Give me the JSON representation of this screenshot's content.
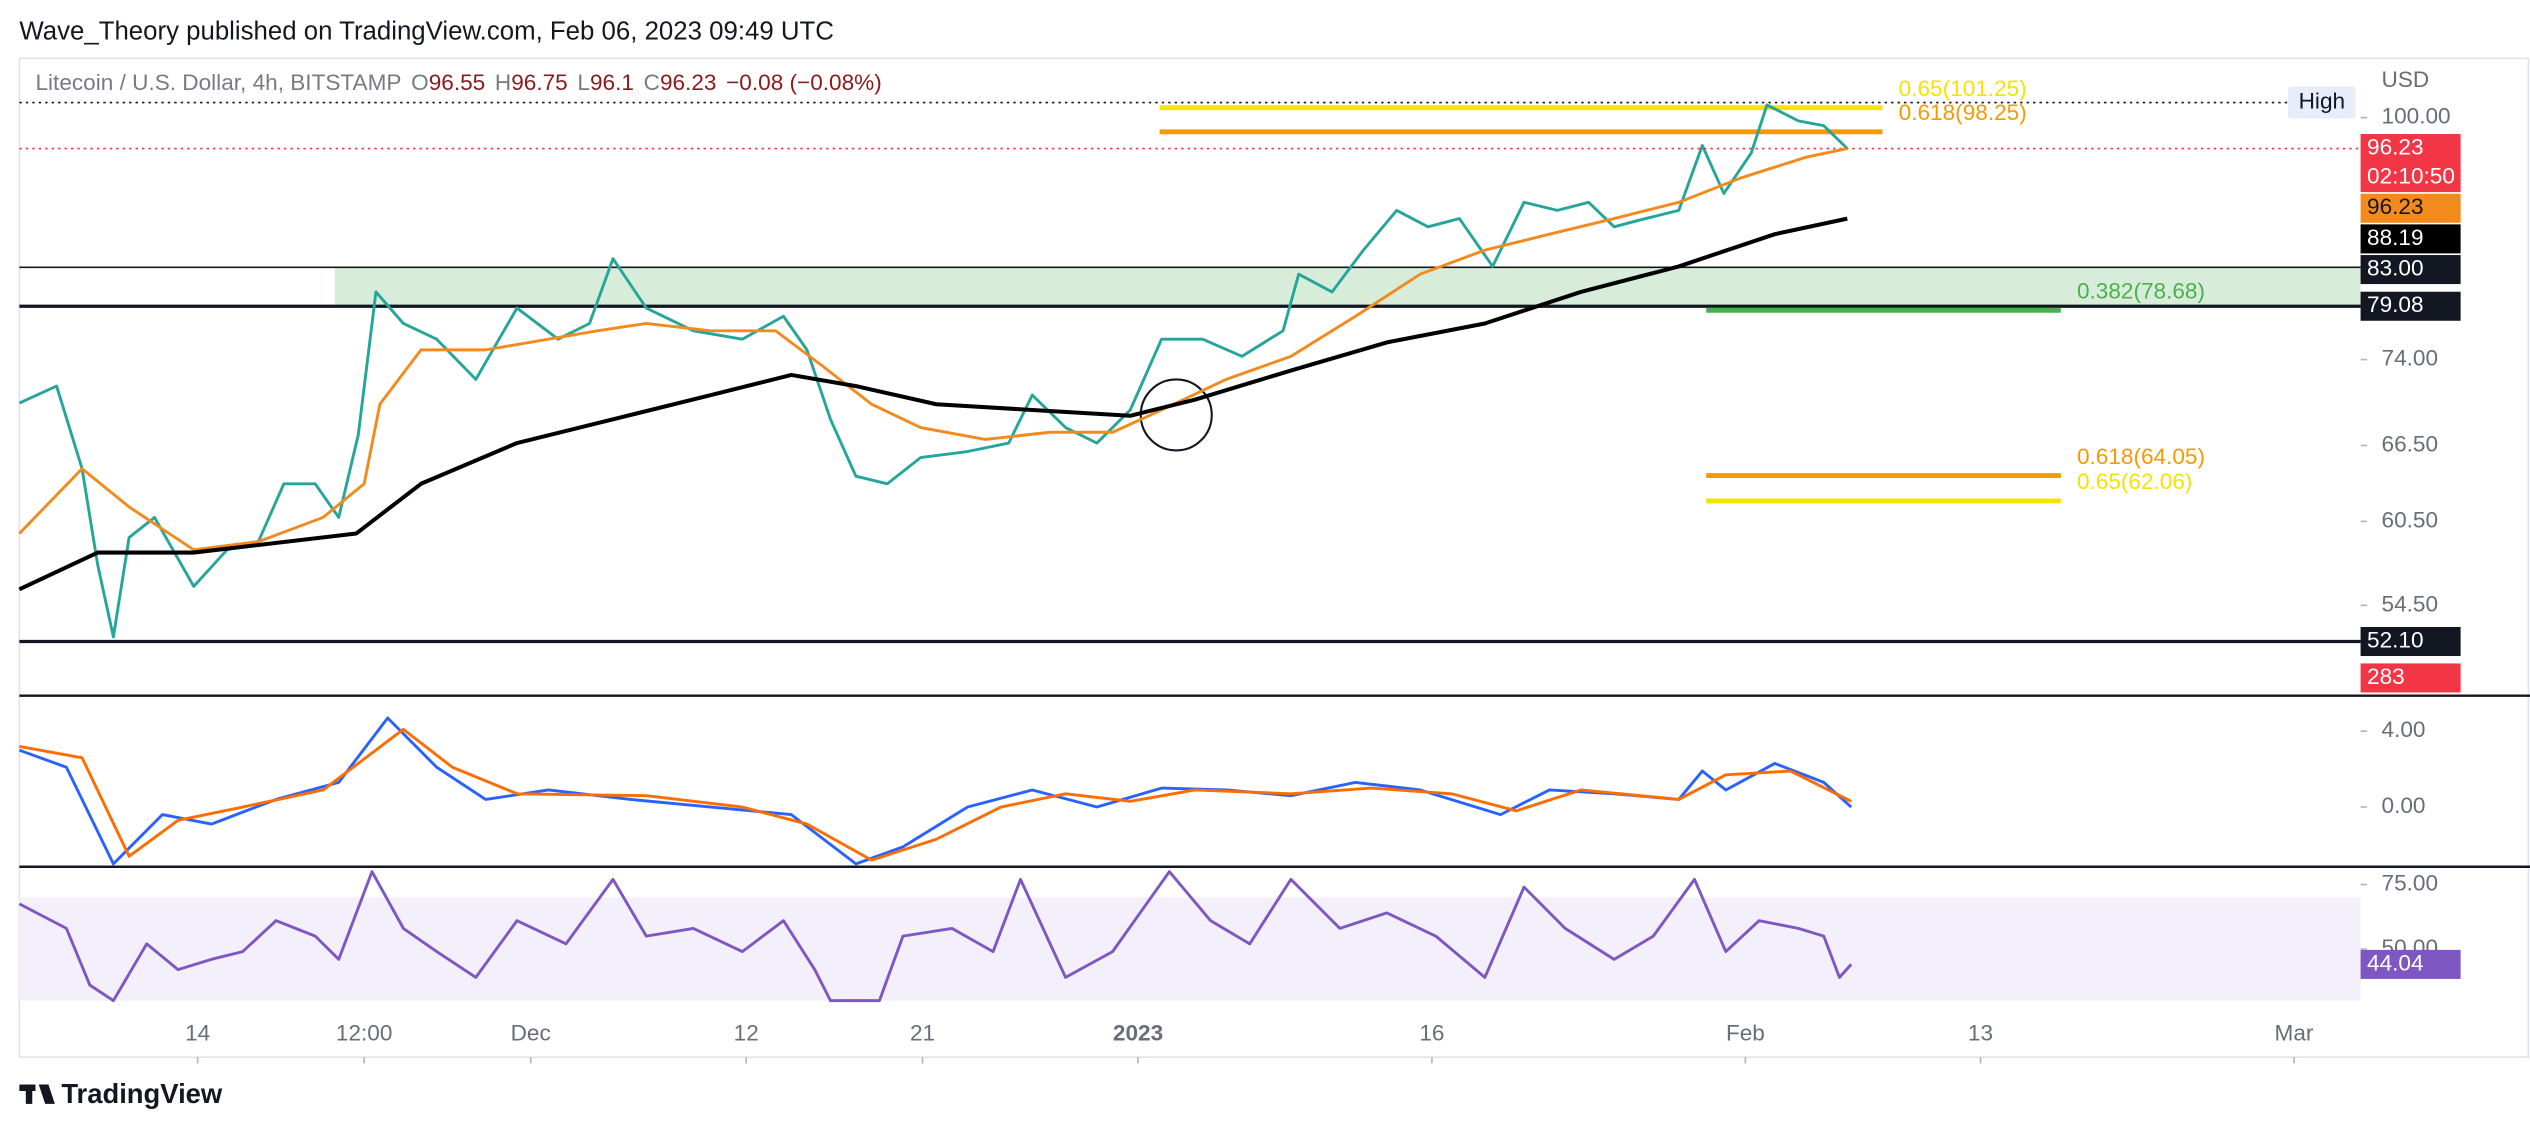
{
  "header": "Wave_Theory published on TradingView.com, Feb 06, 2023 09:49 UTC",
  "footer": "TradingView",
  "chart_data": [
    {
      "type": "line",
      "title": "Litecoin / U.S. Dollar, 4h, BITSTAMP",
      "ohlc": [
        {
          "key": "O",
          "value": 96.55
        },
        {
          "key": "H",
          "value": 96.75
        },
        {
          "key": "L",
          "value": 96.1
        },
        {
          "key": "C",
          "value": 96.23
        }
      ],
      "change": "−0.08 (−0.08%)",
      "y_unit": "USD",
      "countdown": "02:10:50",
      "high_label": "High",
      "high": 101.9,
      "last_volume": 283,
      "log_scale": true,
      "xlim": [
        3.9,
        123.4
      ],
      "xticks": [
        {
          "value": 13,
          "label": "14"
        },
        {
          "value": 21.5,
          "label": "12:00"
        },
        {
          "value": 30,
          "label": "Dec"
        },
        {
          "value": 41,
          "label": "12"
        },
        {
          "value": 50,
          "label": "21"
        },
        {
          "value": 61,
          "label": "2023"
        },
        {
          "value": 76,
          "label": "16"
        },
        {
          "value": 92,
          "label": "Feb"
        },
        {
          "value": 104,
          "label": "13"
        },
        {
          "value": 120,
          "label": "Mar"
        }
      ],
      "ylim": [
        48.8,
        106.8
      ],
      "yticks": [
        {
          "value": 100,
          "label": "100.00"
        },
        {
          "value": 74,
          "label": "74.00"
        },
        {
          "value": 66.5,
          "label": "66.50"
        },
        {
          "value": 60.5,
          "label": "60.50"
        },
        {
          "value": 54.5,
          "label": "54.50"
        }
      ],
      "series": [
        {
          "color": "#26a69a",
          "tag_color": "#f23645",
          "x": [
            3.9,
            5.8,
            7.1,
            7.9,
            8.7,
            9.5,
            10.8,
            12.8,
            14.5,
            16.1,
            17.4,
            19.0,
            20.2,
            21.2,
            22.1,
            23.5,
            25.2,
            27.2,
            29.3,
            31.4,
            33.0,
            34.2,
            35.9,
            38.3,
            40.8,
            42.9,
            44.1,
            45.3,
            46.6,
            48.2,
            49.9,
            52.3,
            54.4,
            55.6,
            57.3,
            58.9,
            60.6,
            62.2,
            64.3,
            66.3,
            68.4,
            69.2,
            70.9,
            72.5,
            74.2,
            75.8,
            77.4,
            79.1,
            80.7,
            82.4,
            84.0,
            85.3,
            86.9,
            88.6,
            89.8,
            90.9,
            92.3,
            93.1,
            94.7,
            96.0,
            97.2
          ],
          "values": [
            70.1,
            71.6,
            64.6,
            57.3,
            52.4,
            59.3,
            60.8,
            55.8,
            58.4,
            59.0,
            63.4,
            63.4,
            60.8,
            67.4,
            80.5,
            77.4,
            75.9,
            72.2,
            78.9,
            75.9,
            77.4,
            83.9,
            78.9,
            76.7,
            75.9,
            78.1,
            74.9,
            68.7,
            64.0,
            63.4,
            65.5,
            66.0,
            66.7,
            70.8,
            68.0,
            66.7,
            69.5,
            75.9,
            75.9,
            74.3,
            76.7,
            82.3,
            80.5,
            84.8,
            89.1,
            87.3,
            88.2,
            83.1,
            90.0,
            89.1,
            90.0,
            87.3,
            88.2,
            89.1,
            96.6,
            91.0,
            95.7,
            101.6,
            99.6,
            99.0,
            96.23
          ]
        },
        {
          "color": "#f28a1e",
          "tag_color": "#f28a1e",
          "x": [
            3.9,
            7.1,
            9.5,
            12.8,
            16.1,
            19.4,
            21.5,
            22.3,
            24.4,
            27.7,
            30.9,
            33.4,
            35.9,
            39.2,
            42.5,
            44.9,
            47.4,
            49.9,
            53.2,
            56.5,
            59.7,
            62.2,
            65.5,
            68.8,
            72.1,
            75.4,
            78.7,
            82.0,
            85.3,
            88.6,
            91.8,
            95.1,
            97.2
          ],
          "values": [
            59.6,
            64.6,
            61.6,
            58.4,
            59.0,
            60.8,
            63.4,
            70.0,
            74.9,
            74.9,
            75.9,
            76.7,
            77.4,
            76.7,
            76.7,
            73.4,
            70.0,
            68.0,
            67.0,
            67.6,
            67.6,
            69.5,
            72.2,
            74.3,
            78.1,
            82.3,
            84.8,
            86.5,
            88.2,
            90.0,
            92.8,
            95.2,
            96.23
          ]
        },
        {
          "color": "#000000",
          "tag_color": "#000000",
          "x": [
            3.9,
            7.9,
            12.8,
            21.1,
            24.4,
            29.3,
            34.2,
            39.2,
            43.3,
            46.6,
            50.7,
            55.6,
            60.6,
            63.9,
            68.8,
            73.7,
            78.7,
            83.6,
            88.6,
            93.5,
            97.2
          ],
          "values": [
            55.6,
            58.2,
            58.2,
            59.6,
            63.4,
            66.7,
            68.7,
            70.8,
            72.6,
            71.6,
            70.0,
            69.5,
            69.0,
            70.4,
            73.0,
            75.6,
            77.4,
            80.5,
            83.1,
            86.5,
            88.19
          ]
        }
      ],
      "levels": [
        {
          "value": 83,
          "label": "83.00"
        },
        79.08,
        {
          "value": 52.1,
          "label": "52.10"
        }
      ],
      "zone_from": 20.0,
      "zone_color": "#cde8cf",
      "fibs": [
        {
          "label": "0.65(101.25)",
          "value": 101.25,
          "color": "#f5e400",
          "x": [
            62.1,
            99.0
          ]
        },
        {
          "label": "0.618(98.25)",
          "value": 98.25,
          "color": "#f59a00",
          "x": [
            62.1,
            99.0
          ]
        },
        {
          "label": "0.382(78.68)",
          "value": 78.68,
          "color": "#4caf50",
          "x": [
            90.0,
            108.1
          ]
        },
        {
          "label": "0.618(64.05)",
          "value": 64.05,
          "color": "#f59a00",
          "x": [
            90.0,
            108.1
          ]
        },
        {
          "label": "0.65(62.06)",
          "value": 62.06,
          "color": "#f5e400",
          "x": [
            90.0,
            108.1
          ]
        }
      ]
    },
    {
      "type": "line",
      "ylim": [
        -3.15,
        5.79
      ],
      "yticks": [
        {
          "value": 4,
          "label": "4.00"
        },
        {
          "value": 0,
          "label": "0.00"
        }
      ],
      "series": [
        {
          "color": "#2962ff",
          "x": [
            3.9,
            6.3,
            8.7,
            11.2,
            13.7,
            17.0,
            20.2,
            22.7,
            25.2,
            27.7,
            30.9,
            35.1,
            39.2,
            43.3,
            46.6,
            49.0,
            52.3,
            55.6,
            58.9,
            62.2,
            65.5,
            68.8,
            72.1,
            75.4,
            79.5,
            82.0,
            85.3,
            88.6,
            89.8,
            91.0,
            93.5,
            96.0,
            97.4
          ],
          "values": [
            3.0,
            2.1,
            -3.0,
            -0.4,
            -0.9,
            0.4,
            1.3,
            4.7,
            2.1,
            0.4,
            0.9,
            0.4,
            0,
            -0.4,
            -3.0,
            -2.1,
            0,
            0.9,
            0,
            1.0,
            0.9,
            0.6,
            1.3,
            0.9,
            -0.4,
            0.9,
            0.7,
            0.4,
            1.9,
            0.9,
            2.3,
            1.3,
            0
          ]
        },
        {
          "color": "#ff6d00",
          "x": [
            3.9,
            7.1,
            9.5,
            12.0,
            15.3,
            19.4,
            23.5,
            26.0,
            29.3,
            35.9,
            40.8,
            44.1,
            47.4,
            50.7,
            54.0,
            57.3,
            60.6,
            63.9,
            68.8,
            72.9,
            77.0,
            80.3,
            83.6,
            88.6,
            91.0,
            94.3,
            97.4
          ],
          "values": [
            3.2,
            2.6,
            -2.6,
            -0.7,
            0,
            0.9,
            4.1,
            2.1,
            0.7,
            0.6,
            0,
            -0.9,
            -2.8,
            -1.7,
            0,
            0.7,
            0.3,
            0.9,
            0.7,
            1.0,
            0.7,
            -0.2,
            0.9,
            0.4,
            1.7,
            1.9,
            0.3
          ]
        }
      ]
    },
    {
      "type": "line",
      "ylim": [
        8.1,
        81.9
      ],
      "yticks": [
        {
          "value": 75,
          "label": "75.00"
        },
        {
          "value": 50,
          "label": "50.00"
        }
      ],
      "band": [
        30,
        70
      ],
      "band_color": "#f3effb",
      "series": [
        {
          "color": "#7e57c2",
          "tag_color": "#7e57c2",
          "x": [
            3.9,
            6.3,
            7.5,
            8.7,
            10.4,
            12.0,
            13.7,
            15.3,
            17.0,
            19.0,
            20.2,
            21.9,
            23.5,
            25.2,
            27.2,
            29.3,
            31.8,
            34.2,
            35.9,
            38.3,
            40.8,
            42.9,
            44.5,
            45.3,
            47.8,
            49.0,
            51.5,
            53.6,
            55.0,
            57.3,
            59.7,
            62.6,
            64.7,
            66.7,
            68.8,
            71.3,
            73.7,
            76.2,
            78.7,
            80.7,
            82.8,
            85.3,
            87.3,
            89.4,
            91.0,
            92.7,
            94.7,
            96.0,
            96.8,
            97.4
          ],
          "values": [
            67.5,
            58,
            36,
            30,
            52,
            42,
            46,
            49,
            61,
            55,
            46,
            80,
            58,
            49,
            39,
            61,
            52,
            77,
            55,
            58,
            49,
            61,
            42,
            30,
            30,
            55,
            58,
            49,
            77,
            39,
            49,
            80,
            61,
            52,
            77,
            58,
            64,
            55,
            39,
            74,
            58,
            46,
            55,
            77,
            49,
            61,
            58,
            55,
            39,
            44.04
          ]
        }
      ]
    }
  ]
}
